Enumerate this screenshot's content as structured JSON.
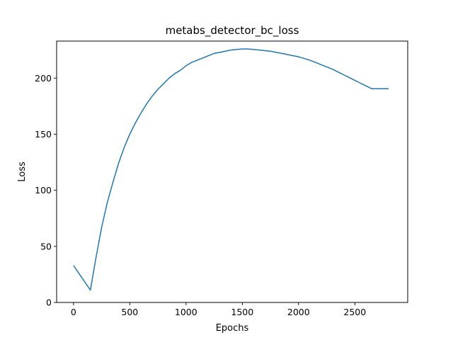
{
  "chart_data": {
    "type": "line",
    "title": "metabs_detector_bc_loss",
    "xlabel": "Epochs",
    "ylabel": "Loss",
    "xlim": [
      -150,
      2970
    ],
    "ylim": [
      0,
      233
    ],
    "xticks": [
      0,
      500,
      1000,
      1500,
      2000,
      2500
    ],
    "yticks": [
      0,
      50,
      100,
      150,
      200
    ],
    "grid": false,
    "series": [
      {
        "color": "#1f77b4",
        "x": [
          0,
          150,
          200,
          250,
          300,
          350,
          400,
          450,
          500,
          550,
          600,
          650,
          700,
          750,
          800,
          850,
          900,
          950,
          1000,
          1050,
          1100,
          1150,
          1200,
          1250,
          1300,
          1350,
          1400,
          1450,
          1500,
          1550,
          1600,
          1650,
          1700,
          1750,
          1800,
          1850,
          1900,
          1950,
          2000,
          2050,
          2100,
          2150,
          2200,
          2250,
          2300,
          2350,
          2400,
          2450,
          2500,
          2550,
          2600,
          2650,
          2700,
          2750,
          2800
        ],
        "y": [
          33,
          11,
          40,
          67,
          89,
          107,
          124,
          138,
          150,
          160,
          169,
          177,
          184,
          190,
          195,
          200,
          204,
          207,
          211,
          214,
          216,
          218,
          220,
          222,
          223,
          224,
          225,
          225.5,
          226,
          226,
          225.5,
          225,
          224.5,
          224,
          223,
          222,
          221,
          220,
          219,
          217.5,
          216,
          214,
          212,
          210,
          208,
          205.5,
          203,
          200.5,
          198,
          195.5,
          193,
          190.5,
          190.5,
          190.5,
          190.5
        ]
      }
    ]
  }
}
